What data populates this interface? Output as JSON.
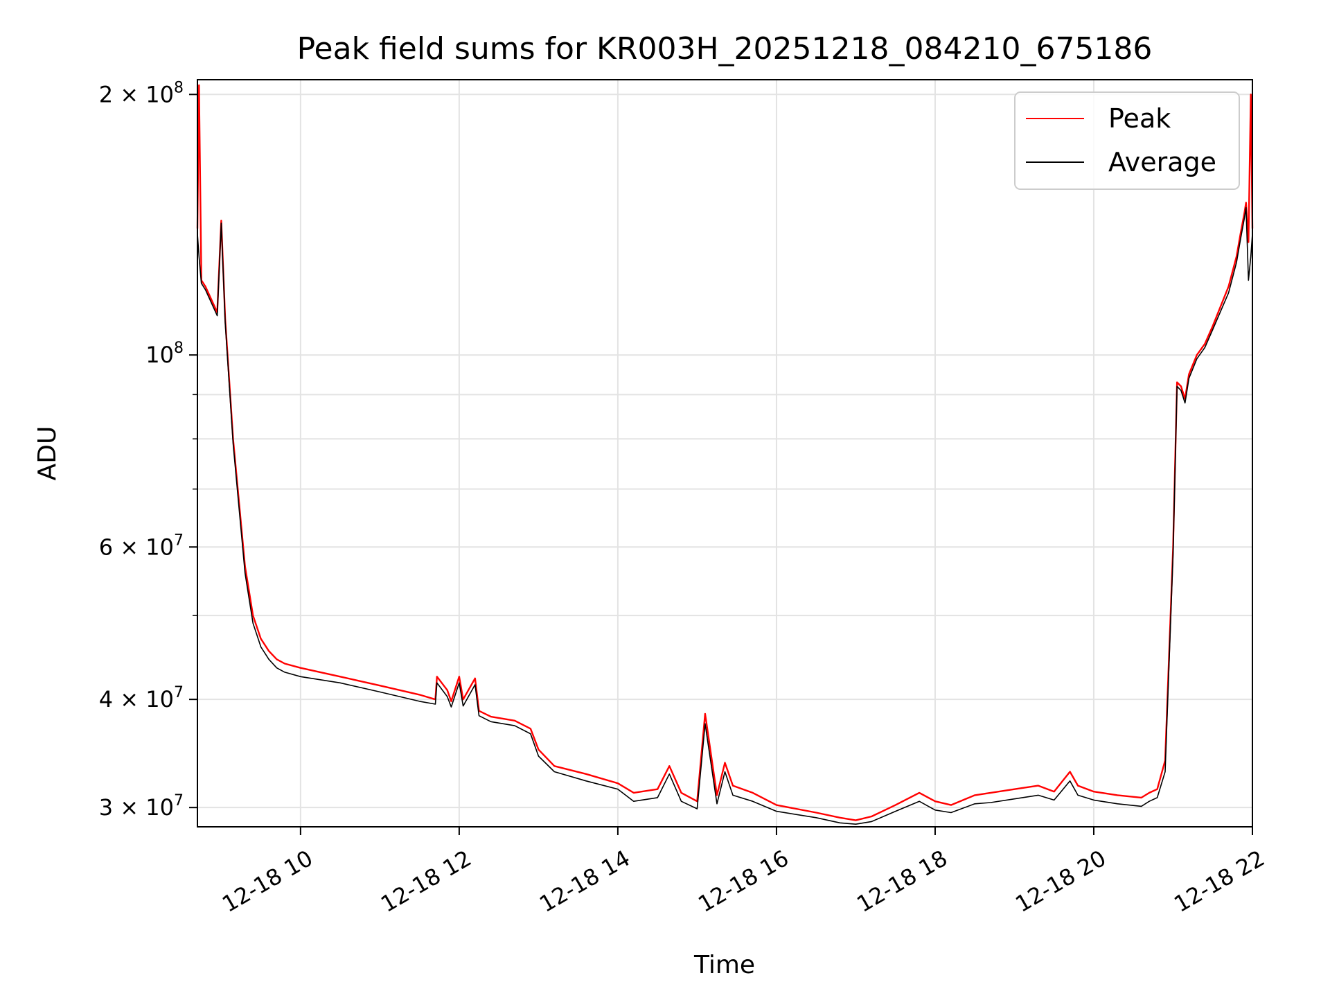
{
  "chart_data": {
    "type": "line",
    "title": "Peak field sums for KR003H_20251218_084210_675186",
    "xlabel": "Time",
    "ylabel": "ADU",
    "yscale": "log",
    "grid": true,
    "legend_position": "top-right",
    "xlim": [
      8.7,
      22.0
    ],
    "ylim": [
      28500000,
      208000000
    ],
    "x_tick_values": [
      10,
      12,
      14,
      16,
      18,
      20,
      22
    ],
    "x_tick_labels": [
      "12-18 10",
      "12-18 12",
      "12-18 14",
      "12-18 16",
      "12-18 18",
      "12-18 20",
      "12-18 22"
    ],
    "y_tick_values": [
      30000000,
      40000000,
      60000000,
      100000000,
      200000000
    ],
    "y_tick_mantissa": [
      "3",
      "4",
      "6",
      "",
      "2"
    ],
    "y_tick_exponent": [
      "7",
      "7",
      "7",
      "8",
      "8"
    ],
    "y_minor_tick_values": [
      50000000,
      70000000,
      80000000,
      90000000
    ],
    "times_mark": "×",
    "ten": "10",
    "series": [
      {
        "name": "Peak",
        "color": "#ff0000",
        "x": [
          8.7,
          8.72,
          8.75,
          8.8,
          8.95,
          9.0,
          9.05,
          9.15,
          9.3,
          9.4,
          9.5,
          9.6,
          9.7,
          9.8,
          10.0,
          10.5,
          11.0,
          11.5,
          11.7,
          11.72,
          11.85,
          11.9,
          12.0,
          12.05,
          12.2,
          12.25,
          12.4,
          12.7,
          12.9,
          13.0,
          13.2,
          13.6,
          14.0,
          14.2,
          14.5,
          14.65,
          14.8,
          15.0,
          15.1,
          15.25,
          15.35,
          15.45,
          15.7,
          16.0,
          16.5,
          16.8,
          17.0,
          17.2,
          17.5,
          17.8,
          18.0,
          18.2,
          18.5,
          18.7,
          19.0,
          19.3,
          19.5,
          19.7,
          19.8,
          20.0,
          20.3,
          20.6,
          20.7,
          20.8,
          20.9,
          21.0,
          21.05,
          21.1,
          21.15,
          21.2,
          21.3,
          21.4,
          21.5,
          21.7,
          21.8,
          21.85,
          21.9,
          21.92,
          21.95,
          21.98,
          22.0
        ],
        "values": [
          140000000,
          205000000,
          122000000,
          120000000,
          112000000,
          143000000,
          110000000,
          80000000,
          57000000,
          50000000,
          47000000,
          45500000,
          44500000,
          44000000,
          43500000,
          42500000,
          41500000,
          40500000,
          40000000,
          42500000,
          41000000,
          39800000,
          42500000,
          40000000,
          42300000,
          38800000,
          38200000,
          37800000,
          37000000,
          35000000,
          33500000,
          32800000,
          32000000,
          31200000,
          31500000,
          33500000,
          31200000,
          30500000,
          38500000,
          31000000,
          33800000,
          31800000,
          31200000,
          30200000,
          29600000,
          29200000,
          29000000,
          29300000,
          30200000,
          31200000,
          30500000,
          30200000,
          31000000,
          31200000,
          31500000,
          31800000,
          31300000,
          33000000,
          31800000,
          31300000,
          31000000,
          30800000,
          31200000,
          31500000,
          34000000,
          60000000,
          93000000,
          92000000,
          89000000,
          95000000,
          100000000,
          103000000,
          108000000,
          120000000,
          130000000,
          138000000,
          146000000,
          150000000,
          135000000,
          200000000,
          140000000
        ]
      },
      {
        "name": "Average",
        "color": "#000000",
        "x": [
          8.7,
          8.72,
          8.75,
          8.8,
          8.95,
          9.0,
          9.05,
          9.15,
          9.3,
          9.4,
          9.5,
          9.6,
          9.7,
          9.8,
          10.0,
          10.5,
          11.0,
          11.5,
          11.7,
          11.72,
          11.85,
          11.9,
          12.0,
          12.05,
          12.2,
          12.25,
          12.4,
          12.7,
          12.9,
          13.0,
          13.2,
          13.6,
          14.0,
          14.2,
          14.5,
          14.65,
          14.8,
          15.0,
          15.1,
          15.25,
          15.35,
          15.45,
          15.7,
          16.0,
          16.5,
          16.8,
          17.0,
          17.2,
          17.5,
          17.8,
          18.0,
          18.2,
          18.5,
          18.7,
          19.0,
          19.3,
          19.5,
          19.7,
          19.8,
          20.0,
          20.3,
          20.6,
          20.7,
          20.8,
          20.9,
          21.0,
          21.05,
          21.1,
          21.15,
          21.2,
          21.3,
          21.4,
          21.5,
          21.7,
          21.8,
          21.85,
          21.9,
          21.92,
          21.95,
          21.98,
          22.0
        ],
        "values": [
          138000000,
          130000000,
          121000000,
          119000000,
          111000000,
          142000000,
          109000000,
          79000000,
          56000000,
          49000000,
          46000000,
          44500000,
          43500000,
          43000000,
          42500000,
          41800000,
          40800000,
          39800000,
          39500000,
          41800000,
          40300000,
          39200000,
          41800000,
          39300000,
          41600000,
          38300000,
          37700000,
          37300000,
          36500000,
          34400000,
          33000000,
          32200000,
          31500000,
          30500000,
          30800000,
          32800000,
          30500000,
          29900000,
          37500000,
          30300000,
          33000000,
          31000000,
          30500000,
          29700000,
          29200000,
          28800000,
          28700000,
          28900000,
          29700000,
          30500000,
          29800000,
          29600000,
          30300000,
          30400000,
          30700000,
          31000000,
          30600000,
          32200000,
          31000000,
          30600000,
          30300000,
          30100000,
          30500000,
          30800000,
          33000000,
          59000000,
          92000000,
          91000000,
          88000000,
          94000000,
          99000000,
          102000000,
          107000000,
          118000000,
          128000000,
          136000000,
          144000000,
          148000000,
          122000000,
          130000000,
          138000000
        ]
      }
    ]
  }
}
